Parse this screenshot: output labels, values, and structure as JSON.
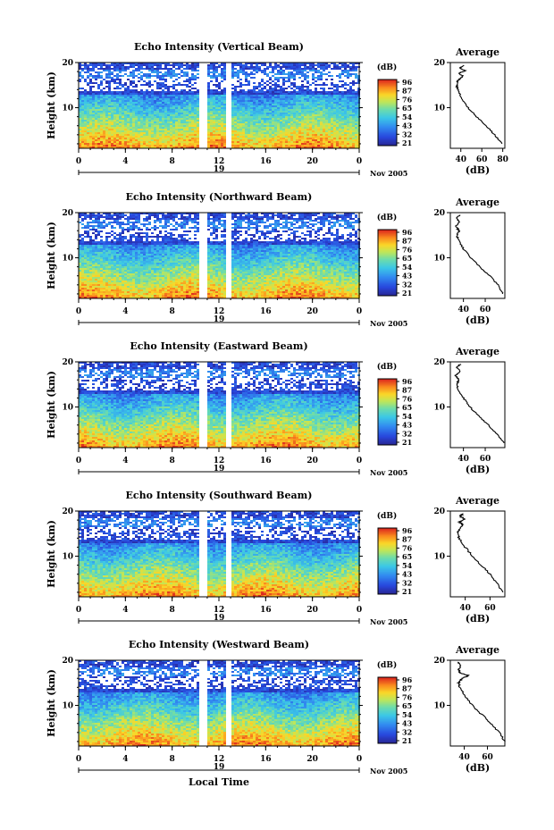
{
  "figure": {
    "xlabel": "Local Time",
    "date_label": "Nov 2005",
    "day_label": "19",
    "cbar_unit": "(dB)",
    "cbar_ticks": [
      "96",
      "87",
      "76",
      "65",
      "54",
      "43",
      "32",
      "21"
    ]
  },
  "chart_data": [
    {
      "type": "heatmap",
      "title": "Echo Intensity (Vertical Beam)",
      "ylabel": "Height (km)",
      "x_ticks": [
        "0",
        "4",
        "8",
        "12",
        "16",
        "20",
        "0"
      ],
      "y_ticks": [
        "20",
        "10"
      ],
      "xlim": [
        0,
        24
      ],
      "ylim": [
        1,
        20
      ],
      "data_gaps_hours": [
        [
          10.3,
          10.9
        ],
        [
          12.6,
          13.1
        ]
      ],
      "colorbar": {
        "label": "(dB)",
        "ticks": [
          96,
          87,
          76,
          65,
          54,
          43,
          32,
          21
        ]
      },
      "profile": {
        "title": "Average",
        "xlabel": "(dB)",
        "x_ticks": [
          "40",
          "60",
          "80"
        ],
        "y_ticks": [
          "20",
          "10"
        ],
        "xlim": [
          30,
          82
        ],
        "ylim": [
          1,
          20
        ],
        "height_km": [
          2,
          4,
          6,
          8,
          10,
          12,
          14,
          15,
          16,
          17,
          17.6,
          18.2,
          18.8,
          19.4
        ],
        "value_db": [
          80,
          72,
          64,
          55,
          47,
          41,
          37,
          36,
          37,
          42,
          38,
          44,
          39,
          43
        ]
      }
    },
    {
      "type": "heatmap",
      "title": "Echo Intensity (Northward Beam)",
      "ylabel": "Height (km)",
      "x_ticks": [
        "0",
        "4",
        "8",
        "12",
        "16",
        "20",
        "0"
      ],
      "y_ticks": [
        "20",
        "10"
      ],
      "xlim": [
        0,
        24
      ],
      "ylim": [
        1,
        20
      ],
      "data_gaps_hours": [
        [
          10.4,
          10.9
        ],
        [
          12.6,
          13.1
        ]
      ],
      "colorbar": {
        "label": "(dB)",
        "ticks": [
          96,
          87,
          76,
          65,
          54,
          43,
          32,
          21
        ]
      },
      "profile": {
        "title": "Average",
        "xlabel": "(dB)",
        "x_ticks": [
          "40",
          "60"
        ],
        "y_ticks": [
          "20",
          "10"
        ],
        "xlim": [
          28,
          78
        ],
        "ylim": [
          1,
          20
        ],
        "height_km": [
          2,
          4,
          6,
          8,
          10,
          12,
          14,
          15,
          16,
          17,
          18,
          18.8,
          19.5
        ],
        "value_db": [
          76,
          72,
          64,
          55,
          47,
          40,
          35,
          34,
          36,
          33,
          36,
          34,
          37
        ]
      }
    },
    {
      "type": "heatmap",
      "title": "Echo Intensity (Eastward Beam)",
      "ylabel": "Height (km)",
      "x_ticks": [
        "0",
        "4",
        "8",
        "12",
        "16",
        "20",
        "0"
      ],
      "y_ticks": [
        "20",
        "10"
      ],
      "xlim": [
        0,
        24
      ],
      "ylim": [
        1,
        20
      ],
      "data_gaps_hours": [
        [
          10.3,
          10.9
        ],
        [
          12.6,
          13.1
        ]
      ],
      "colorbar": {
        "label": "(dB)",
        "ticks": [
          96,
          87,
          76,
          65,
          54,
          43,
          32,
          21
        ]
      },
      "profile": {
        "title": "Average",
        "xlabel": "(dB)",
        "x_ticks": [
          "40",
          "60"
        ],
        "y_ticks": [
          "20",
          "10"
        ],
        "xlim": [
          28,
          78
        ],
        "ylim": [
          1,
          20
        ],
        "height_km": [
          2,
          4,
          6,
          8,
          10,
          12,
          14,
          15,
          16,
          17,
          18,
          18.8,
          19.5
        ],
        "value_db": [
          77,
          71,
          63,
          54,
          46,
          40,
          35,
          34,
          36,
          33,
          37,
          34,
          37
        ]
      }
    },
    {
      "type": "heatmap",
      "title": "Echo Intensity (Southward Beam)",
      "ylabel": "Height (km)",
      "x_ticks": [
        "0",
        "4",
        "8",
        "12",
        "16",
        "20",
        "0"
      ],
      "y_ticks": [
        "20",
        "10"
      ],
      "xlim": [
        0,
        24
      ],
      "ylim": [
        1,
        20
      ],
      "data_gaps_hours": [
        [
          10.4,
          10.9
        ],
        [
          12.6,
          13.1
        ]
      ],
      "colorbar": {
        "label": "(dB)",
        "ticks": [
          96,
          87,
          76,
          65,
          54,
          43,
          32,
          21
        ]
      },
      "profile": {
        "title": "Average",
        "xlabel": "(dB)",
        "x_ticks": [
          "40",
          "60"
        ],
        "y_ticks": [
          "20",
          "10"
        ],
        "xlim": [
          28,
          72
        ],
        "ylim": [
          1,
          20
        ],
        "height_km": [
          2,
          4,
          6,
          8,
          10,
          12,
          14,
          15,
          16,
          17,
          17.6,
          18.2,
          18.8,
          19.5
        ],
        "value_db": [
          70,
          66,
          60,
          53,
          46,
          40,
          35,
          34,
          35,
          38,
          35,
          40,
          36,
          38
        ]
      }
    },
    {
      "type": "heatmap",
      "title": "Echo Intensity (Westward Beam)",
      "ylabel": "Height (km)",
      "x_ticks": [
        "0",
        "4",
        "8",
        "12",
        "16",
        "20",
        "0"
      ],
      "y_ticks": [
        "20",
        "10"
      ],
      "xlim": [
        0,
        24
      ],
      "ylim": [
        1,
        20
      ],
      "data_gaps_hours": [
        [
          10.3,
          10.9
        ],
        [
          12.6,
          13.1
        ]
      ],
      "colorbar": {
        "label": "(dB)",
        "ticks": [
          96,
          87,
          76,
          65,
          54,
          43,
          32,
          21
        ]
      },
      "profile": {
        "title": "Average",
        "xlabel": "(dB)",
        "x_ticks": [
          "40",
          "60"
        ],
        "y_ticks": [
          "20",
          "10"
        ],
        "xlim": [
          28,
          75
        ],
        "ylim": [
          1,
          20
        ],
        "height_km": [
          2,
          4,
          6,
          8,
          10,
          12,
          14,
          15,
          16,
          16.6,
          17.2,
          18,
          19,
          19.6
        ],
        "value_db": [
          75,
          70,
          63,
          55,
          47,
          41,
          36,
          35,
          38,
          44,
          36,
          35,
          37,
          35
        ]
      }
    }
  ]
}
